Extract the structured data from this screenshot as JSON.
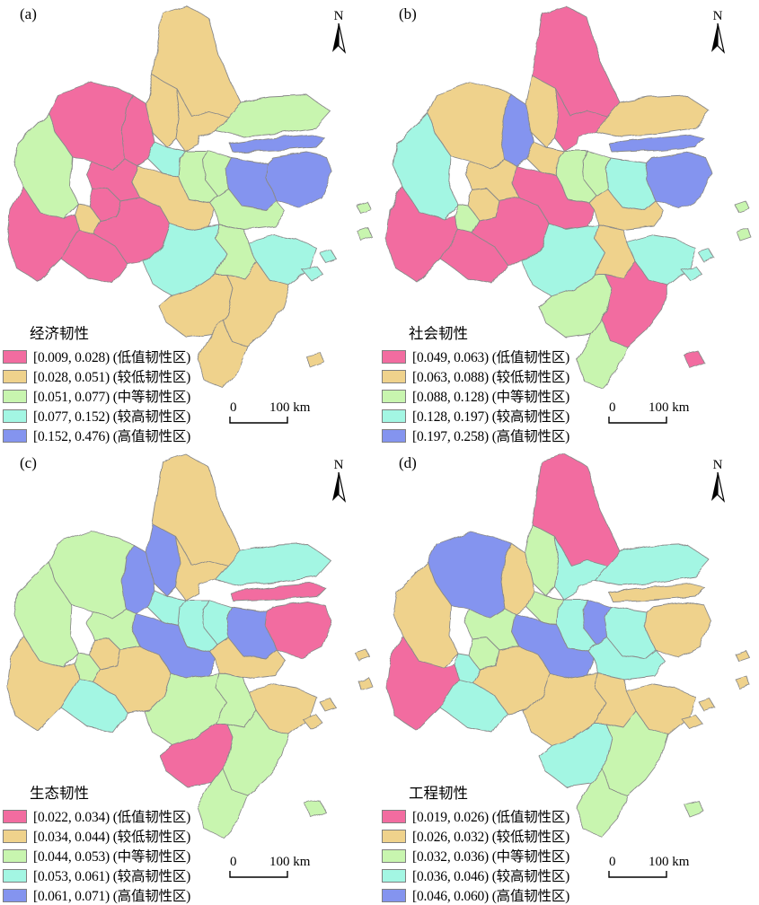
{
  "figure": {
    "background": "#ffffff",
    "north_label": "N",
    "scalebar": {
      "zero": "0",
      "max": "100 km"
    }
  },
  "chart_data": {
    "type": "choropleth",
    "class_labels": [
      "低值韧性区",
      "较低韧性区",
      "中等韧性区",
      "较高韧性区",
      "高值韧性区"
    ],
    "palette": [
      "#F26CA0",
      "#EFD28C",
      "#C8F5AF",
      "#A3F6E3",
      "#8494EF"
    ],
    "map_outline_color": "#8a8a8a",
    "region_ids": [
      "r01",
      "r02",
      "r03",
      "r04",
      "r05",
      "r06",
      "r07",
      "r08",
      "r09",
      "r10",
      "r11",
      "r12",
      "r13",
      "r14",
      "r15",
      "r16",
      "r17",
      "r18",
      "r19",
      "r20",
      "r21",
      "r22",
      "r23",
      "r24",
      "r25",
      "r26",
      "r27",
      "r28",
      "r29",
      "r30",
      "r31",
      "r32"
    ],
    "panels": [
      {
        "panel_label": "(a)",
        "title": "经济韧性",
        "legend": [
          {
            "color": "#F26CA0",
            "label": "[0.009, 0.028) (低值韧性区)"
          },
          {
            "color": "#EFD28C",
            "label": "[0.028, 0.051) (较低韧性区)"
          },
          {
            "color": "#C8F5AF",
            "label": "[0.051, 0.077) (中等韧性区)"
          },
          {
            "color": "#A3F6E3",
            "label": "[0.077, 0.152) (较高韧性区)"
          },
          {
            "color": "#8494EF",
            "label": "[0.152, 0.476) (高值韧性区)"
          }
        ],
        "region_classes": [
          1,
          1,
          1,
          2,
          4,
          4,
          4,
          2,
          2,
          3,
          0,
          0,
          2,
          0,
          0,
          1,
          0,
          0,
          0,
          1,
          2,
          3,
          2,
          3,
          1,
          1,
          1,
          3,
          3,
          2,
          2,
          1
        ]
      },
      {
        "panel_label": "(b)",
        "title": "社会韧性",
        "legend": [
          {
            "color": "#F26CA0",
            "label": "[0.049, 0.063) (低值韧性区)"
          },
          {
            "color": "#EFD28C",
            "label": "[0.063, 0.088) (较低韧性区)"
          },
          {
            "color": "#C8F5AF",
            "label": "[0.088, 0.128) (中等韧性区)"
          },
          {
            "color": "#A3F6E3",
            "label": "[0.128, 0.197) (较高韧性区)"
          },
          {
            "color": "#8494EF",
            "label": "[0.197, 0.258) (高值韧性区)"
          }
        ],
        "region_classes": [
          0,
          1,
          0,
          1,
          4,
          4,
          3,
          2,
          2,
          1,
          4,
          1,
          3,
          1,
          1,
          2,
          0,
          0,
          0,
          0,
          1,
          3,
          1,
          3,
          2,
          0,
          2,
          3,
          3,
          2,
          2,
          0
        ]
      },
      {
        "panel_label": "(c)",
        "title": "生态韧性",
        "legend": [
          {
            "color": "#F26CA0",
            "label": "[0.022, 0.034) (低值韧性区)"
          },
          {
            "color": "#EFD28C",
            "label": "[0.034, 0.044) (较低韧性区)"
          },
          {
            "color": "#C8F5AF",
            "label": "[0.044, 0.053) (中等韧性区)"
          },
          {
            "color": "#A3F6E3",
            "label": "[0.053, 0.061) (较高韧性区)"
          },
          {
            "color": "#8494EF",
            "label": "[0.061, 0.071) (高值韧性区)"
          }
        ],
        "region_classes": [
          1,
          4,
          1,
          3,
          0,
          0,
          4,
          3,
          3,
          3,
          4,
          2,
          2,
          2,
          1,
          2,
          1,
          3,
          1,
          4,
          1,
          2,
          2,
          1,
          0,
          2,
          2,
          1,
          1,
          1,
          1,
          2
        ]
      },
      {
        "panel_label": "(d)",
        "title": "工程韧性",
        "legend": [
          {
            "color": "#F26CA0",
            "label": "[0.019, 0.026) (低值韧性区)"
          },
          {
            "color": "#EFD28C",
            "label": "[0.026, 0.032) (较低韧性区)"
          },
          {
            "color": "#C8F5AF",
            "label": "[0.032, 0.036) (中等韧性区)"
          },
          {
            "color": "#A3F6E3",
            "label": "[0.036, 0.046) (较高韧性区)"
          },
          {
            "color": "#8494EF",
            "label": "[0.046, 0.060) (高值韧性区)"
          }
        ],
        "region_classes": [
          0,
          2,
          3,
          3,
          1,
          1,
          3,
          4,
          3,
          2,
          1,
          4,
          1,
          2,
          2,
          3,
          0,
          3,
          1,
          4,
          3,
          1,
          1,
          1,
          3,
          2,
          2,
          1,
          1,
          1,
          1,
          2
        ]
      }
    ]
  }
}
